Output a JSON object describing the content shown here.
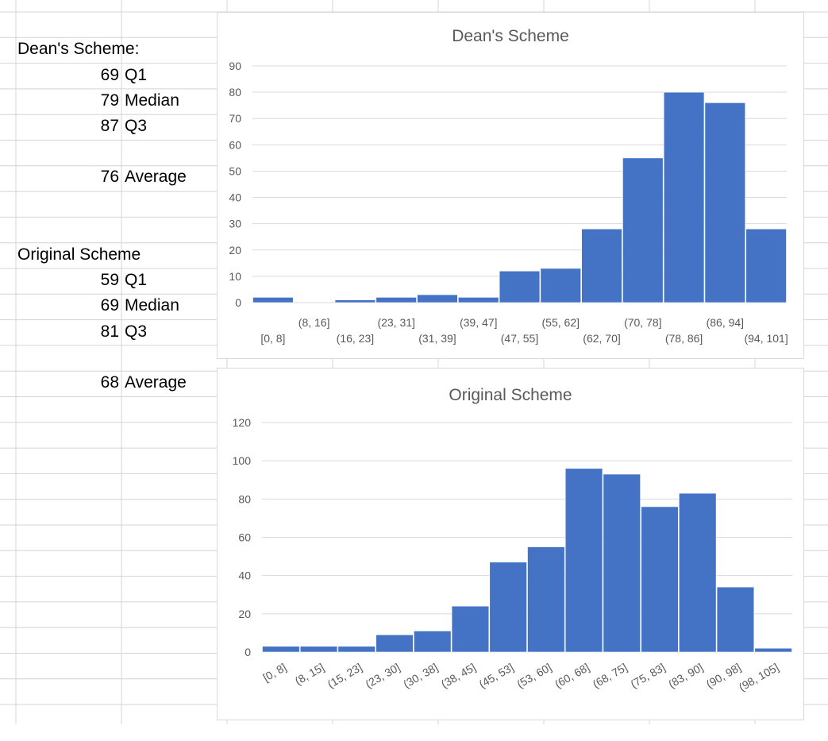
{
  "sheet": {
    "dean_header": "Dean's Scheme:",
    "dean_stats": [
      {
        "value": "69",
        "label": "Q1"
      },
      {
        "value": "79",
        "label": "Median"
      },
      {
        "value": "87",
        "label": "Q3"
      },
      {
        "value": "76",
        "label": "Average"
      }
    ],
    "orig_header": "Original Scheme",
    "orig_stats": [
      {
        "value": "59",
        "label": "Q1"
      },
      {
        "value": "69",
        "label": "Median"
      },
      {
        "value": "81",
        "label": "Q3"
      },
      {
        "value": "68",
        "label": "Average"
      }
    ]
  },
  "colors": {
    "bar": "#4472c4",
    "grid": "#d9d9d9",
    "axis_text": "#595959",
    "title": "#595959"
  },
  "chart_data": [
    {
      "type": "bar",
      "title": "Dean's Scheme",
      "categories": [
        "[0, 8]",
        "(8, 16]",
        "(16, 23]",
        "(23, 31]",
        "(31, 39]",
        "(39, 47]",
        "(47, 55]",
        "(55, 62]",
        "(62, 70]",
        "(70, 78]",
        "(78, 86]",
        "(86, 94]",
        "(94, 101]"
      ],
      "values": [
        2,
        0,
        1,
        2,
        3,
        2,
        12,
        13,
        28,
        55,
        80,
        76,
        28
      ],
      "ylim": [
        0,
        90
      ],
      "yticks": [
        0,
        10,
        20,
        30,
        40,
        50,
        60,
        70,
        80,
        90
      ],
      "grid": true
    },
    {
      "type": "bar",
      "title": "Original Scheme",
      "categories": [
        "[0, 8]",
        "(8, 15]",
        "(15, 23]",
        "(23, 30]",
        "(30, 38]",
        "(38, 45]",
        "(45, 53]",
        "(53, 60]",
        "(60, 68]",
        "(68, 75]",
        "(75, 83]",
        "(83, 90]",
        "(90, 98]",
        "(98, 105]"
      ],
      "values": [
        3,
        3,
        3,
        9,
        11,
        24,
        47,
        55,
        96,
        93,
        76,
        83,
        34,
        2
      ],
      "ylim": [
        0,
        120
      ],
      "yticks": [
        0,
        20,
        40,
        60,
        80,
        100,
        120
      ],
      "grid": true
    }
  ]
}
